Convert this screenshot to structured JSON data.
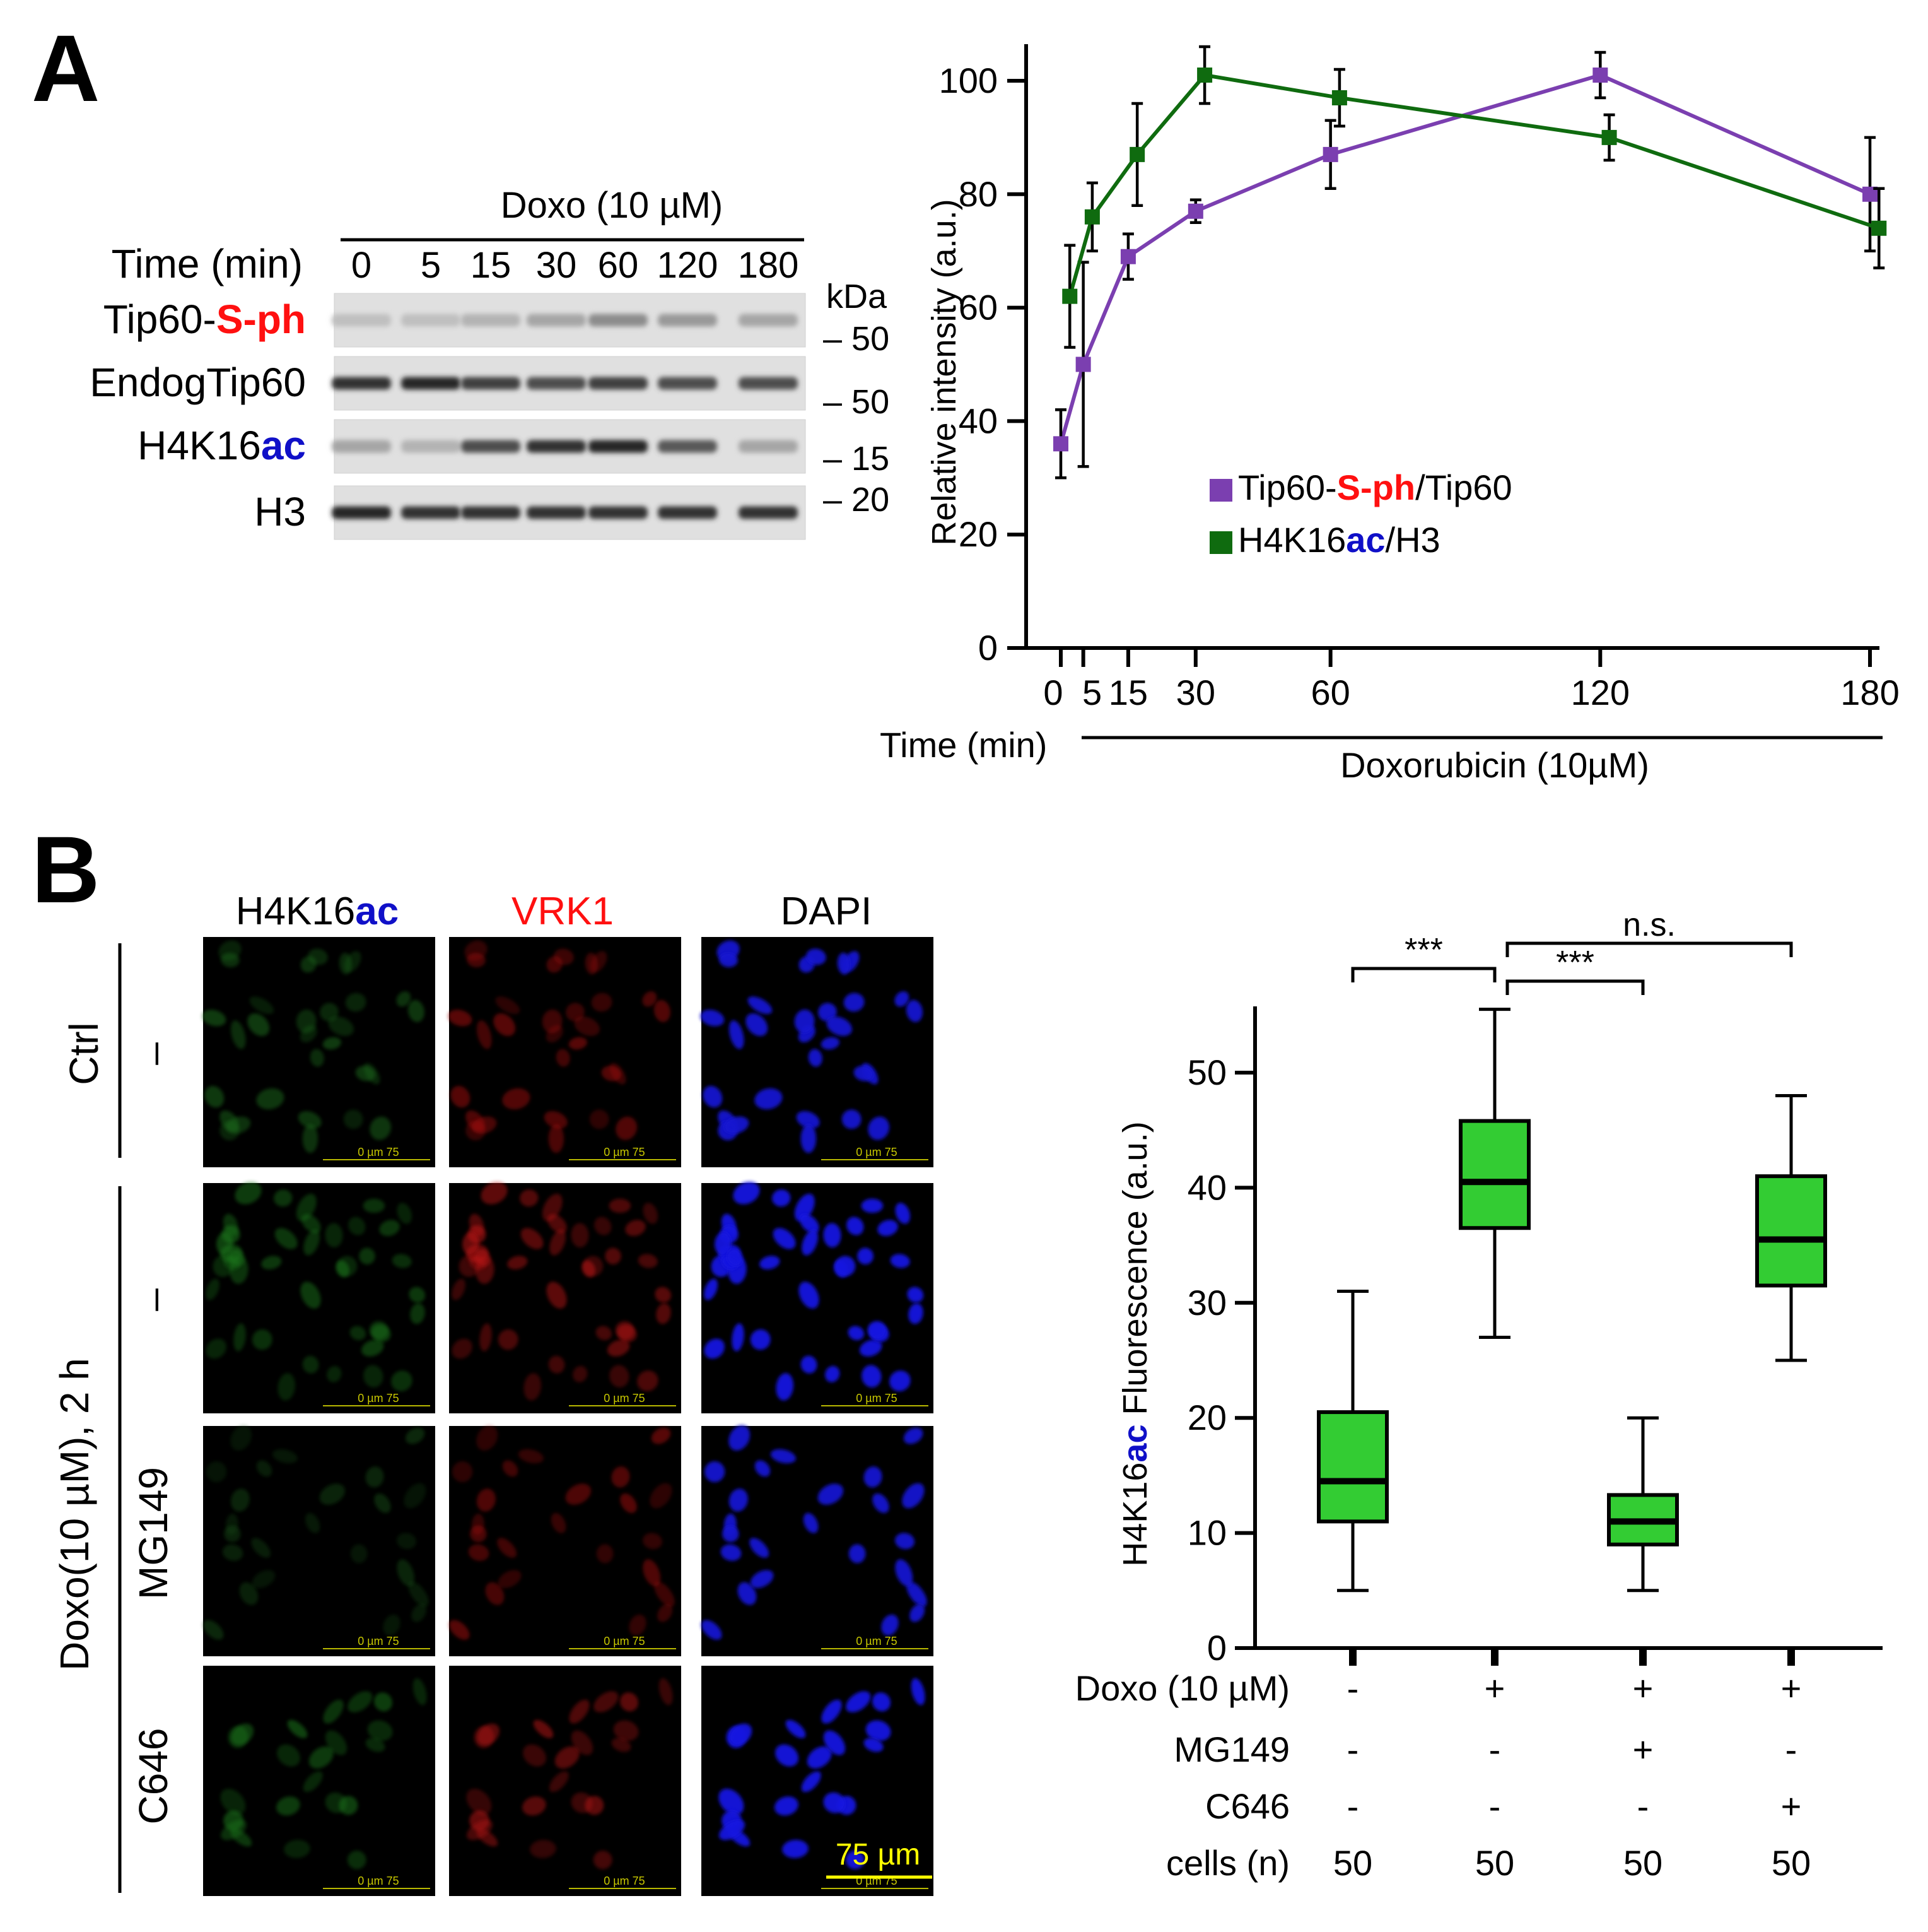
{
  "colors": {
    "tip60_series": "#7b3fb0",
    "h4k16_series": "#0f6b0f",
    "red_label": "#ff1010",
    "blue_label": "#1010c8",
    "box_fill": "#33cc33",
    "scale_bar": "#ffff00",
    "h4_channel": "#0b3a0b",
    "vrk1_channel": "#3a0404",
    "dapi_channel": "#000000"
  },
  "panel_a": {
    "letter": "A",
    "blot": {
      "treatment_label": "Doxo (10 µM)",
      "time_label": "Time (min)",
      "lanes": [
        "0",
        "5",
        "15",
        "30",
        "60",
        "120",
        "180"
      ],
      "rows": [
        {
          "label_black": "Tip60-",
          "label_colored": "S-ph",
          "color": "red"
        },
        {
          "label_black": "EndogTip60",
          "label_colored": "",
          "color": ""
        },
        {
          "label_black": "H4K16",
          "label_colored": "ac",
          "color": "blue"
        },
        {
          "label_black": "H3",
          "label_colored": "",
          "color": ""
        }
      ],
      "kda_title": "kDa",
      "markers": [
        "– 50",
        "– 50",
        "– 15",
        "– 20"
      ],
      "band_intensity": [
        [
          0.25,
          0.25,
          0.3,
          0.35,
          0.45,
          0.4,
          0.35
        ],
        [
          0.8,
          0.85,
          0.75,
          0.7,
          0.75,
          0.7,
          0.7
        ],
        [
          0.35,
          0.3,
          0.7,
          0.8,
          0.85,
          0.65,
          0.35
        ],
        [
          0.85,
          0.8,
          0.8,
          0.8,
          0.8,
          0.8,
          0.8
        ]
      ]
    }
  },
  "chart_data": [
    {
      "type": "line",
      "ylabel": "Relative intensity (a.u.)",
      "xlabel": "Time  (min)",
      "treatment_label": "Doxorubicin (10µM)",
      "ylim": [
        0,
        100
      ],
      "yticks": [
        0,
        20,
        40,
        60,
        80,
        100
      ],
      "xlim": [
        -5,
        182
      ],
      "xticks": [
        0,
        5,
        15,
        30,
        60,
        120,
        180
      ],
      "xtick_labels": [
        "0",
        "5",
        "15",
        "30",
        "60",
        "120",
        "180"
      ],
      "legend_position": "center-right",
      "series": [
        {
          "name_parts": [
            "Tip60-",
            "S-ph",
            "/Tip60"
          ],
          "color": "#7b3fb0",
          "x": [
            0,
            5,
            15,
            30,
            60,
            120,
            180
          ],
          "y": [
            36,
            50,
            69,
            77,
            87,
            101,
            80
          ],
          "err": [
            6,
            18,
            4,
            2,
            6,
            4,
            10
          ]
        },
        {
          "name_parts": [
            "H4K16",
            "ac",
            "/H3"
          ],
          "color": "#0f6b0f",
          "x": [
            2,
            7,
            17,
            32,
            62,
            122,
            182
          ],
          "y": [
            62,
            76,
            87,
            101,
            97,
            90,
            74
          ],
          "err": [
            9,
            6,
            9,
            5,
            5,
            4,
            7
          ]
        }
      ]
    },
    {
      "type": "box",
      "ylabel_parts": [
        "H4K16",
        "ac",
        " Fluorescence (a.u.)"
      ],
      "ylim": [
        0,
        55
      ],
      "yticks": [
        0,
        10,
        20,
        30,
        40,
        50
      ],
      "boxes": [
        {
          "min": 5,
          "q1": 11,
          "median": 14.5,
          "q3": 20.5,
          "max": 31
        },
        {
          "min": 27,
          "q1": 36.5,
          "median": 40.5,
          "q3": 45.8,
          "max": 55.5
        },
        {
          "min": 5,
          "q1": 9,
          "median": 11,
          "q3": 13.3,
          "max": 20
        },
        {
          "min": 25,
          "q1": 31.5,
          "median": 35.5,
          "q3": 41,
          "max": 48
        }
      ],
      "conditions": [
        {
          "label": "Doxo (10 µM)",
          "values": [
            "-",
            "+",
            "+",
            "+"
          ]
        },
        {
          "label": "MG149",
          "values": [
            "-",
            "-",
            "+",
            "-"
          ]
        },
        {
          "label": "C646",
          "values": [
            "-",
            "-",
            "-",
            "+"
          ]
        },
        {
          "label": "cells (n)",
          "values": [
            "50",
            "50",
            "50",
            "50"
          ]
        }
      ],
      "significance": [
        {
          "from": 0,
          "to": 1,
          "label": "***"
        },
        {
          "from": 1,
          "to": 2,
          "label": "***"
        },
        {
          "from": 1,
          "to": 3,
          "label": "n.s."
        }
      ]
    }
  ],
  "panel_b": {
    "letter": "B",
    "channel_prefix": "H4K16",
    "channel_suffix": "ac",
    "channel_vrk1": "VRK1",
    "channel_dapi": "DAPI",
    "group_ctrl": "Ctrl",
    "group_doxo": "Doxo(10 µM), 2 h",
    "row_labels": [
      "–",
      "–",
      "MG149",
      "C646"
    ],
    "scale_text": "0     µm     75",
    "scale_bar_label": "75 µm"
  }
}
